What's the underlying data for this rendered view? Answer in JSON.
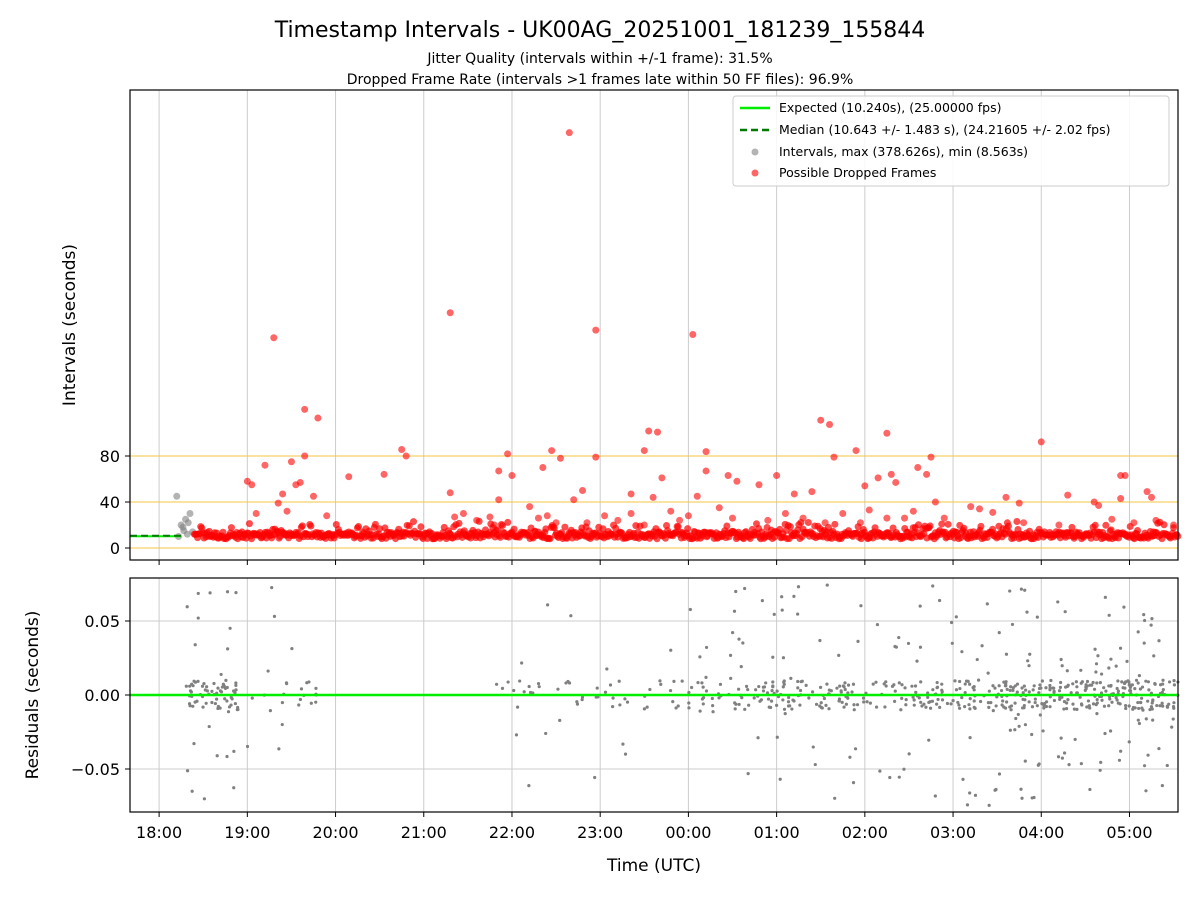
{
  "figure": {
    "title": "Timestamp Intervals - UK00AG_20251001_181239_155844",
    "subtitle_1": "Jitter Quality (intervals within +/-1 frame): 31.5%",
    "subtitle_2": "Dropped Frame Rate (intervals >1 frames late within 50 FF files): 96.9%"
  },
  "colors": {
    "expected": "#00ee00",
    "median": "#007a00",
    "intervals": "#808080",
    "dropped": "#ff0000",
    "threshold_lines": "#f5c542",
    "grid": "#cccccc"
  },
  "chart_data": [
    {
      "type": "scatter",
      "id": "intervals",
      "ylabel": "Intervals (seconds)",
      "xlabel": "",
      "x_unit": "hours since 18:00 UTC on axis",
      "xlim": [
        -0.33,
        11.55
      ],
      "ylim": [
        -10,
        400
      ],
      "y_ticks": [
        0,
        40,
        80
      ],
      "x_ticks": [
        "18:00",
        "19:00",
        "20:00",
        "21:00",
        "22:00",
        "23:00",
        "00:00",
        "01:00",
        "02:00",
        "03:00",
        "04:00",
        "05:00"
      ],
      "threshold_lines": [
        0,
        40,
        80
      ],
      "legend": {
        "placement": "top-right",
        "entries": [
          {
            "label": "Expected (10.240s), (25.00000 fps)",
            "kind": "line"
          },
          {
            "label": "Median (10.643 +/- 1.483 s), (24.21605 +/- 2.02 fps)",
            "kind": "dashed"
          },
          {
            "label": "Intervals, max (378.626s), min (8.563s)",
            "kind": "dot-gray"
          },
          {
            "label": "Possible Dropped Frames",
            "kind": "dot-red"
          }
        ]
      },
      "expected_value": 10.24,
      "median_value": 10.643,
      "series": [
        {
          "name": "Intervals, max (378.626s), min (8.563s)",
          "points": [
            [
              0.2,
              45
            ],
            [
              0.25,
              20
            ],
            [
              0.28,
              15
            ],
            [
              0.3,
              25
            ],
            [
              0.32,
              12
            ],
            [
              0.35,
              30
            ],
            [
              0.22,
              10
            ],
            [
              0.27,
              18
            ],
            [
              0.33,
              22
            ],
            [
              0.38,
              14
            ]
          ]
        },
        {
          "name": "Possible Dropped Frames",
          "points": [
            [
              4.65,
              378
            ],
            [
              3.3,
              212
            ],
            [
              1.3,
              189
            ],
            [
              4.95,
              196
            ],
            [
              6.05,
              192
            ],
            [
              1.65,
              123
            ],
            [
              1.8,
              115
            ],
            [
              5.55,
              103
            ],
            [
              5.65,
              102
            ],
            [
              7.5,
              113
            ],
            [
              7.6,
              109
            ],
            [
              8.25,
              101
            ],
            [
              10.0,
              93
            ],
            [
              4.45,
              85
            ],
            [
              4.55,
              78
            ],
            [
              5.5,
              85
            ],
            [
              2.75,
              86
            ],
            [
              2.8,
              80
            ],
            [
              3.95,
              82
            ],
            [
              4.95,
              79
            ],
            [
              6.2,
              84
            ],
            [
              7.65,
              79
            ],
            [
              7.9,
              85
            ],
            [
              8.75,
              79
            ],
            [
              8.6,
              70
            ],
            [
              1.2,
              72
            ],
            [
              1.5,
              75
            ],
            [
              1.65,
              80
            ],
            [
              2.15,
              62
            ],
            [
              2.55,
              64
            ],
            [
              3.3,
              48
            ],
            [
              3.85,
              67
            ],
            [
              4.0,
              63
            ],
            [
              4.35,
              70
            ],
            [
              4.7,
              42
            ],
            [
              4.8,
              50
            ],
            [
              5.35,
              47
            ],
            [
              5.6,
              44
            ],
            [
              5.7,
              61
            ],
            [
              6.1,
              45
            ],
            [
              6.2,
              67
            ],
            [
              6.45,
              63
            ],
            [
              6.55,
              58
            ],
            [
              6.8,
              55
            ],
            [
              7.0,
              63
            ],
            [
              7.2,
              47
            ],
            [
              7.4,
              49
            ],
            [
              8.0,
              54
            ],
            [
              8.15,
              61
            ],
            [
              8.3,
              64
            ],
            [
              8.35,
              57
            ],
            [
              8.7,
              64
            ],
            [
              8.8,
              40
            ],
            [
              9.6,
              44
            ],
            [
              9.75,
              39
            ],
            [
              10.3,
              46
            ],
            [
              10.9,
              43
            ],
            [
              9.2,
              36
            ],
            [
              9.3,
              34
            ],
            [
              10.6,
              40
            ],
            [
              10.65,
              37
            ],
            [
              10.9,
              63
            ],
            [
              10.95,
              63
            ],
            [
              11.2,
              49
            ],
            [
              11.25,
              44
            ],
            [
              8.45,
              26
            ],
            [
              1.0,
              58
            ],
            [
              1.05,
              55
            ],
            [
              1.1,
              30
            ],
            [
              1.35,
              39
            ],
            [
              1.4,
              47
            ],
            [
              1.45,
              32
            ],
            [
              1.55,
              55
            ],
            [
              1.6,
              57
            ],
            [
              1.75,
              45
            ],
            [
              1.9,
              28
            ],
            [
              3.35,
              27
            ],
            [
              3.45,
              30
            ],
            [
              3.6,
              24
            ],
            [
              3.75,
              27
            ],
            [
              3.8,
              20
            ],
            [
              3.85,
              42
            ],
            [
              4.2,
              36
            ],
            [
              4.3,
              26
            ],
            [
              4.4,
              28
            ],
            [
              4.5,
              22
            ],
            [
              4.85,
              22
            ],
            [
              5.05,
              28
            ],
            [
              5.2,
              24
            ],
            [
              5.35,
              30
            ],
            [
              5.5,
              20
            ],
            [
              5.8,
              32
            ],
            [
              5.9,
              24
            ],
            [
              6.0,
              28
            ],
            [
              6.35,
              35
            ],
            [
              6.5,
              26
            ],
            [
              6.9,
              24
            ],
            [
              7.1,
              30
            ],
            [
              7.3,
              26
            ],
            [
              7.55,
              22
            ],
            [
              7.75,
              30
            ],
            [
              7.95,
              22
            ],
            [
              8.05,
              33
            ],
            [
              8.25,
              26
            ],
            [
              8.55,
              32
            ],
            [
              8.9,
              26
            ],
            [
              9.45,
              31
            ],
            [
              9.8,
              22
            ],
            [
              10.2,
              20
            ],
            [
              10.8,
              25
            ],
            [
              11.05,
              22
            ],
            [
              11.3,
              24
            ],
            [
              11.5,
              20
            ]
          ]
        }
      ]
    },
    {
      "type": "scatter",
      "id": "residuals",
      "ylabel": "Residuals (seconds)",
      "xlabel": "Time (UTC)",
      "xlim": [
        -0.33,
        11.55
      ],
      "ylim": [
        -0.08,
        0.08
      ],
      "y_ticks": [
        "−0.05",
        "0.00",
        "0.05"
      ],
      "y_tick_values": [
        -0.05,
        0.0,
        0.05
      ],
      "x_ticks": [
        "18:00",
        "19:00",
        "20:00",
        "21:00",
        "22:00",
        "23:00",
        "00:00",
        "01:00",
        "02:00",
        "03:00",
        "04:00",
        "05:00"
      ],
      "zero_line": 0.0
    }
  ]
}
